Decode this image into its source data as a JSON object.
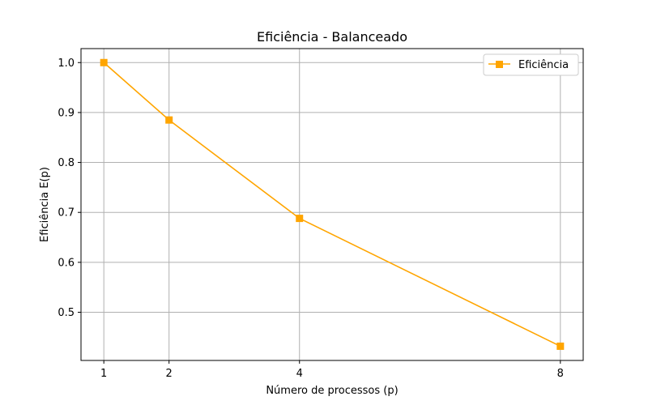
{
  "chart_data": {
    "type": "line",
    "title": "Eficiência - Balanceado",
    "xlabel": "Número de processos (p)",
    "ylabel": "Eficiência E(p)",
    "x": [
      1,
      2,
      4,
      8
    ],
    "x_ticks": [
      "1",
      "2",
      "4",
      "8"
    ],
    "y_ticks": [
      "0.5",
      "0.6",
      "0.7",
      "0.8",
      "0.9",
      "1.0"
    ],
    "y_tick_values": [
      0.5,
      0.6,
      0.7,
      0.8,
      0.9,
      1.0
    ],
    "xlim": [
      0.65,
      8.35
    ],
    "ylim": [
      0.4035,
      1.028
    ],
    "grid": true,
    "legend_position": "top-right",
    "series": [
      {
        "name": "Eficiência",
        "values": [
          1.0,
          0.885,
          0.688,
          0.432
        ],
        "color": "#ffa500",
        "marker": "square"
      }
    ]
  }
}
